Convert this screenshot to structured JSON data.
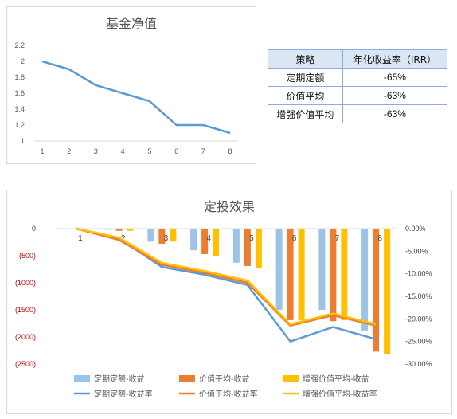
{
  "chart_data": [
    {
      "type": "line",
      "title": "基金净值",
      "x": [
        1,
        2,
        3,
        4,
        5,
        6,
        7,
        8
      ],
      "series": [
        {
          "values": [
            2.0,
            1.9,
            1.7,
            1.6,
            1.5,
            1.2,
            1.2,
            1.1
          ],
          "color": "#5b9bd5"
        }
      ],
      "y_ticks": [
        "2.2",
        "2",
        "1.8",
        "1.6",
        "1.4",
        "1.2",
        "1"
      ],
      "ylim": [
        1,
        2.2
      ],
      "grid": false
    },
    {
      "type": "bar",
      "title": "定投效果",
      "categories": [
        "1",
        "2",
        "3",
        "4",
        "5",
        "6",
        "7",
        "8"
      ],
      "left_axis": {
        "ticks": [
          "0",
          "(500)",
          "(1000)",
          "(1500)",
          "(2000)",
          "(2500)"
        ],
        "range": [
          -2500,
          0
        ],
        "label_color": "#c00000"
      },
      "right_axis": {
        "ticks": [
          "0.00%",
          "-5.00%",
          "-10.00%",
          "-15.00%",
          "-20.00%",
          "-25.00%",
          "-30.00%"
        ],
        "range": [
          -30,
          0
        ]
      },
      "series": [
        {
          "name": "定期定额-收益",
          "kind": "bar",
          "axis": "left",
          "color": "#9dc3e6",
          "values": [
            0,
            -20,
            -240,
            -400,
            -630,
            -1500,
            -1500,
            -1880
          ]
        },
        {
          "name": "价值平均-收益",
          "kind": "bar",
          "axis": "left",
          "color": "#ed7d31",
          "values": [
            0,
            -40,
            -280,
            -470,
            -690,
            -1690,
            -1710,
            -2270
          ]
        },
        {
          "name": "增强价值平均-收益",
          "kind": "bar",
          "axis": "left",
          "color": "#ffc000",
          "values": [
            0,
            -40,
            -240,
            -500,
            -720,
            -1690,
            -1690,
            -2310
          ]
        },
        {
          "name": "定期定额-收益率",
          "kind": "line",
          "axis": "right",
          "color": "#5b9bd5",
          "values": [
            0,
            -2.2,
            -8.5,
            -10.2,
            -12.5,
            -25.0,
            -21.8,
            -24.5
          ]
        },
        {
          "name": "价值平均-收益率",
          "kind": "line",
          "axis": "right",
          "color": "#ed7d31",
          "values": [
            0,
            -2.5,
            -8.0,
            -9.8,
            -12.0,
            -21.5,
            -19.2,
            -21.5
          ]
        },
        {
          "name": "增强价值平均-收益率",
          "kind": "line",
          "axis": "right",
          "color": "#ffc000",
          "values": [
            0,
            -2.0,
            -7.6,
            -9.4,
            -11.5,
            -21.2,
            -18.8,
            -21.2
          ]
        }
      ],
      "grid": false,
      "legend_position": "bottom"
    }
  ],
  "table": {
    "headers": [
      "策略",
      "年化收益率（IRR）"
    ],
    "rows": [
      [
        "定期定额",
        "-65%"
      ],
      [
        "价值平均",
        "-63%"
      ],
      [
        "增强价值平均",
        "-63%"
      ]
    ]
  }
}
